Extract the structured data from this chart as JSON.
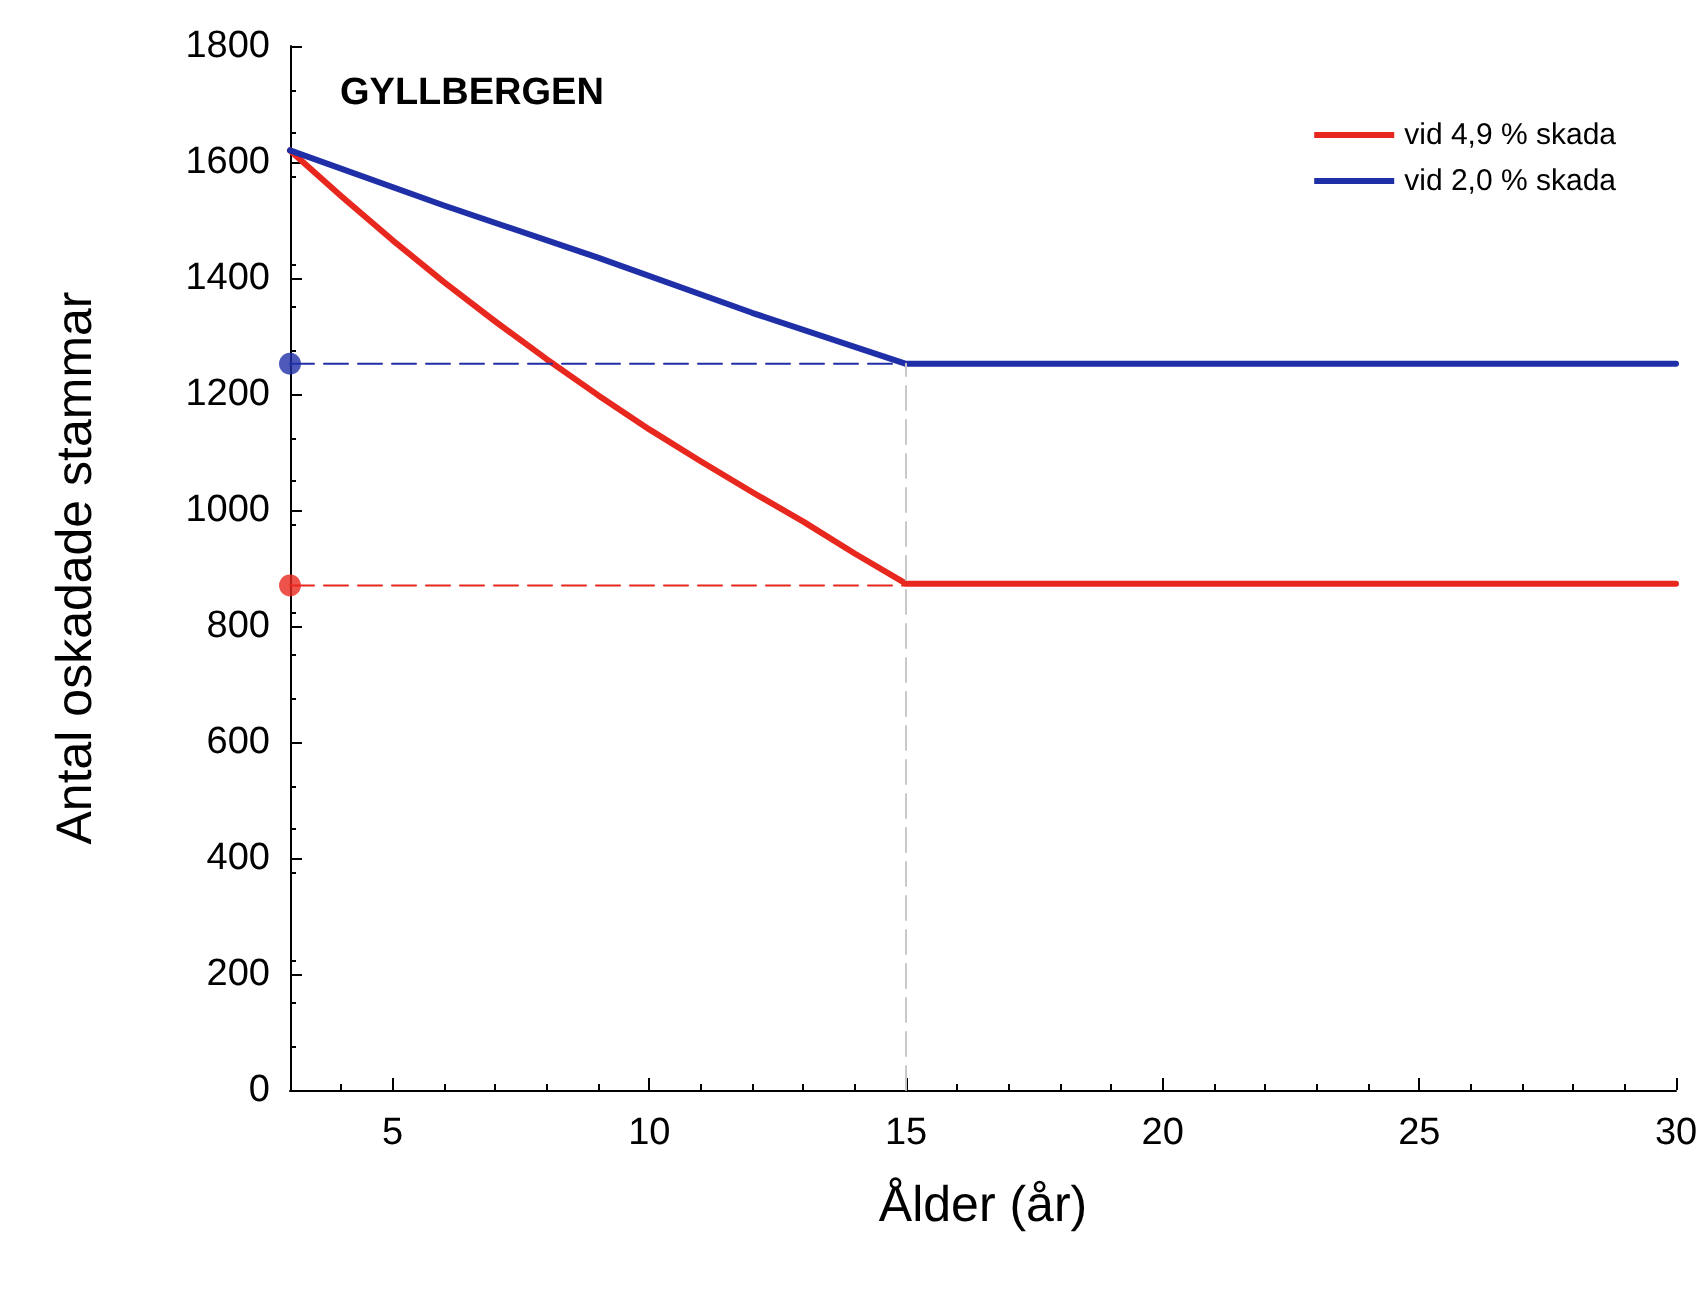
{
  "chart_data": {
    "type": "line",
    "title": "GYLLBERGEN",
    "xlabel": "Ålder (år)",
    "ylabel": "Antal oskadade stammar",
    "xlim": [
      3,
      30
    ],
    "xticks": [
      5,
      10,
      15,
      20,
      25,
      30
    ],
    "ylim": [
      0,
      1800
    ],
    "yticks": [
      0,
      200,
      400,
      600,
      800,
      1000,
      1200,
      1400,
      1600,
      1800
    ],
    "grid": false,
    "legend": "top right",
    "marker": "none",
    "line_style": "solid",
    "series": [
      {
        "name": "vid 4,9 % skada",
        "color": "#e8281e",
        "x": [
          3,
          4,
          5,
          6,
          7,
          8,
          9,
          10,
          11,
          12,
          13,
          14,
          15,
          30
        ],
        "values": [
          1620,
          1541,
          1465,
          1393,
          1325,
          1260,
          1198,
          1139,
          1084,
          1031,
          980,
          925,
          873,
          873
        ]
      },
      {
        "name": "vid 2,0 % skada",
        "color": "#1f2fa8",
        "x": [
          3,
          6,
          9,
          12,
          15,
          30
        ],
        "values": [
          1620,
          1525,
          1435,
          1340,
          1252,
          1252
        ]
      },
      {
        "color": "#e8281e",
        "x": [
          3,
          15
        ],
        "values": [
          870,
          870
        ],
        "line_style": "dashed"
      },
      {
        "color": "#1f2fa8",
        "x": [
          3,
          15
        ],
        "values": [
          1252,
          1252
        ],
        "line_style": "dashed"
      },
      {
        "color": "#c8c8c8",
        "x": [
          15,
          15
        ],
        "values": [
          0,
          1252
        ],
        "line_style": "dashed"
      },
      {
        "type": "scatter",
        "color": "#e8281e",
        "x": [
          3
        ],
        "values": [
          870
        ],
        "marker": "circle"
      },
      {
        "type": "scatter",
        "color": "#1f2fa8",
        "x": [
          3
        ],
        "values": [
          1252
        ],
        "marker": "circle"
      }
    ]
  }
}
